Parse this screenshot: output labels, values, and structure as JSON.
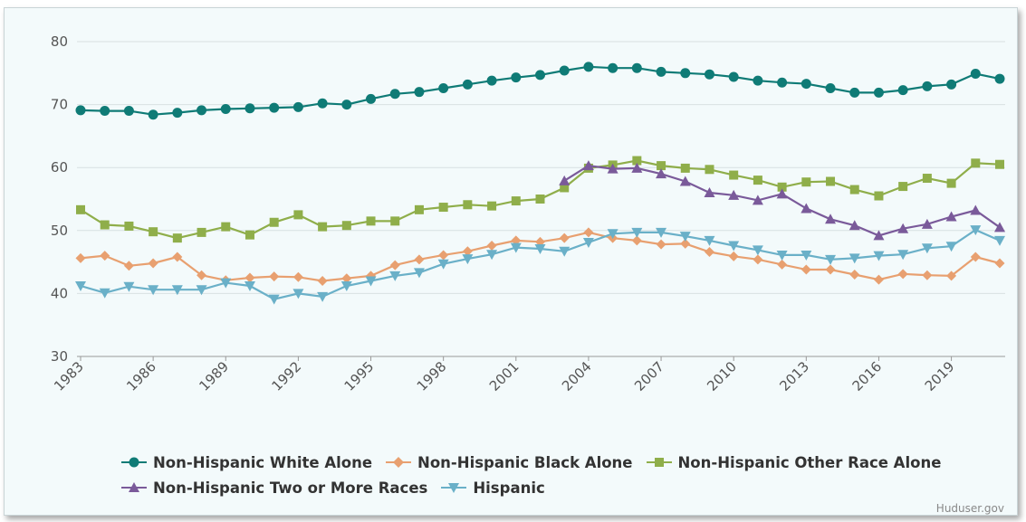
{
  "chart_data": {
    "type": "line",
    "x": [
      1983,
      1984,
      1985,
      1986,
      1987,
      1988,
      1989,
      1990,
      1991,
      1992,
      1993,
      1994,
      1995,
      1996,
      1997,
      1998,
      1999,
      2000,
      2001,
      2002,
      2003,
      2004,
      2005,
      2006,
      2007,
      2008,
      2009,
      2010,
      2011,
      2012,
      2013,
      2014,
      2015,
      2016,
      2017,
      2018,
      2019,
      2020,
      2021
    ],
    "x_ticks": [
      "1983",
      "1986",
      "1989",
      "1992",
      "1995",
      "1998",
      "2001",
      "2004",
      "2007",
      "2010",
      "2013",
      "2016",
      "2019"
    ],
    "y_ticks": [
      "30",
      "40",
      "50",
      "60",
      "70",
      "80"
    ],
    "ylim": [
      30,
      80
    ],
    "grid": true,
    "legend_position": "bottom",
    "series": [
      {
        "name": "Non-Hispanic White Alone",
        "color": "#0f7b76",
        "marker": "circle",
        "values": [
          69.1,
          69.0,
          69.0,
          68.4,
          68.7,
          69.1,
          69.3,
          69.4,
          69.5,
          69.6,
          70.2,
          70.0,
          70.9,
          71.7,
          72.0,
          72.6,
          73.2,
          73.8,
          74.3,
          74.7,
          75.4,
          76.0,
          75.8,
          75.8,
          75.2,
          75.0,
          74.8,
          74.4,
          73.8,
          73.5,
          73.3,
          72.6,
          71.9,
          71.9,
          72.3,
          72.9,
          73.2,
          74.9,
          74.1
        ]
      },
      {
        "name": "Non-Hispanic Black Alone",
        "color": "#e8a070",
        "marker": "diamond",
        "values": [
          45.6,
          46.0,
          44.4,
          44.8,
          45.8,
          42.9,
          42.1,
          42.5,
          42.7,
          42.6,
          42.0,
          42.4,
          42.8,
          44.5,
          45.4,
          46.1,
          46.7,
          47.6,
          48.4,
          48.2,
          48.8,
          49.7,
          48.8,
          48.4,
          47.8,
          47.9,
          46.6,
          45.9,
          45.4,
          44.6,
          43.8,
          43.8,
          43.0,
          42.2,
          43.1,
          42.9,
          42.8,
          45.8,
          44.8
        ]
      },
      {
        "name": "Non-Hispanic Other Race Alone",
        "color": "#8fae4a",
        "marker": "square",
        "values": [
          53.3,
          50.9,
          50.7,
          49.8,
          48.8,
          49.7,
          50.6,
          49.3,
          51.3,
          52.5,
          50.6,
          50.8,
          51.5,
          51.5,
          53.3,
          53.7,
          54.1,
          53.9,
          54.7,
          55.0,
          56.8,
          59.9,
          60.4,
          61.1,
          60.3,
          59.9,
          59.7,
          58.8,
          58.0,
          56.9,
          57.7,
          57.8,
          56.5,
          55.5,
          57.0,
          58.3,
          57.5,
          60.7,
          60.5
        ]
      },
      {
        "name": "Non-Hispanic Two or More Races",
        "color": "#7a5a9a",
        "marker": "triangle-up",
        "values": [
          null,
          null,
          null,
          null,
          null,
          null,
          null,
          null,
          null,
          null,
          null,
          null,
          null,
          null,
          null,
          null,
          null,
          null,
          null,
          null,
          57.9,
          60.3,
          59.8,
          59.9,
          59.0,
          57.8,
          56.0,
          55.6,
          54.8,
          55.8,
          53.5,
          51.8,
          50.8,
          49.2,
          50.3,
          51.0,
          52.2,
          53.2,
          50.5
        ]
      },
      {
        "name": "Hispanic",
        "color": "#6ab0c8",
        "marker": "triangle-down",
        "values": [
          41.2,
          40.1,
          41.1,
          40.6,
          40.6,
          40.6,
          41.7,
          41.2,
          39.1,
          40.0,
          39.5,
          41.2,
          42.0,
          42.8,
          43.3,
          44.7,
          45.5,
          46.2,
          47.3,
          47.1,
          46.7,
          48.1,
          49.5,
          49.7,
          49.7,
          49.1,
          48.4,
          47.6,
          46.9,
          46.1,
          46.1,
          45.4,
          45.6,
          46.0,
          46.2,
          47.2,
          47.5,
          50.1,
          48.4
        ]
      }
    ]
  },
  "credit": "Huduser.gov"
}
